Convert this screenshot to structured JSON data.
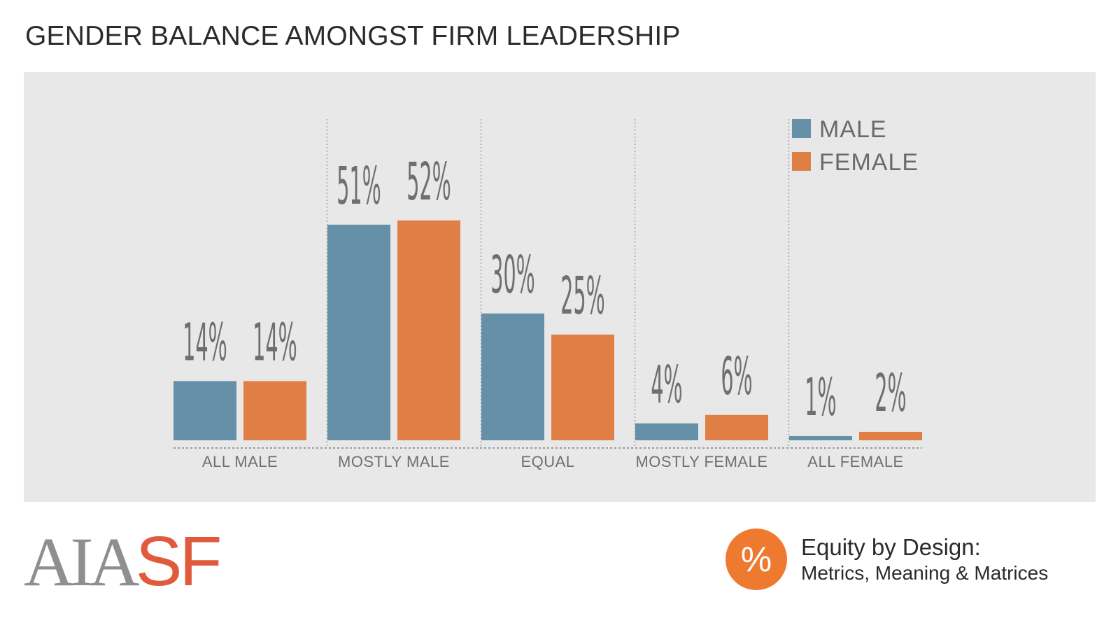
{
  "title": "GENDER BALANCE AMONGST FIRM LEADERSHIP",
  "chart_data": {
    "type": "bar",
    "categories": [
      "ALL MALE",
      "MOSTLY MALE",
      "EQUAL",
      "MOSTLY FEMALE",
      "ALL FEMALE"
    ],
    "series": [
      {
        "name": "MALE",
        "values": [
          14,
          51,
          30,
          4,
          1
        ],
        "labels": [
          "14%",
          "51%",
          "30%",
          "4%",
          "1%"
        ],
        "color": "#668fa8"
      },
      {
        "name": "FEMALE",
        "values": [
          14,
          52,
          25,
          6,
          2
        ],
        "labels": [
          "14%",
          "52%",
          "25%",
          "6%",
          "2%"
        ],
        "color": "#e07f45"
      }
    ],
    "unit": "%",
    "legend": "top-right",
    "grid": false
  },
  "logo": {
    "aia": "AIA",
    "sf": "SF"
  },
  "badge": {
    "symbol": "%"
  },
  "brand": {
    "line1": "Equity by Design:",
    "line2": "Metrics, Meaning & Matrices"
  },
  "colors": {
    "panel": "#e8e8e8",
    "male": "#668fa8",
    "female": "#e07f45",
    "logo_gray": "#8f8f8f",
    "logo_red": "#e05a3b",
    "badge": "#ee7a2f"
  }
}
